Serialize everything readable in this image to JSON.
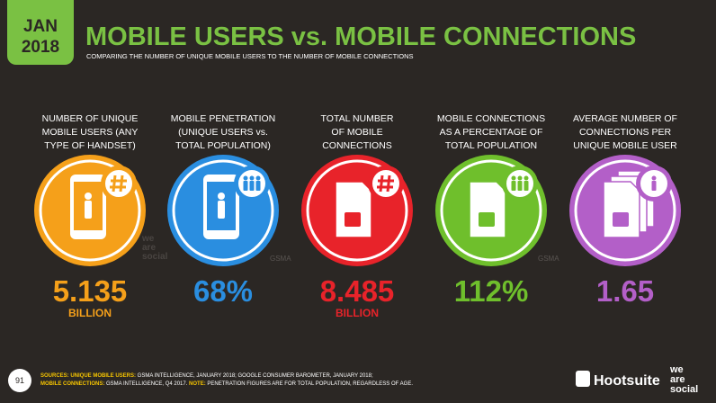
{
  "header": {
    "badge": [
      "JAN",
      "2018"
    ],
    "title": "MOBILE USERS vs. MOBILE CONNECTIONS",
    "subtitle": "COMPARING THE NUMBER OF UNIQUE MOBILE USERS TO THE NUMBER OF MOBILE CONNECTIONS"
  },
  "stats": [
    {
      "label_lines": [
        "NUMBER OF UNIQUE",
        "MOBILE USERS (ANY",
        "TYPE OF HANDSET)"
      ],
      "value": "5.135",
      "unit": "BILLION",
      "color": "#f5a01a"
    },
    {
      "label_lines": [
        "MOBILE PENETRATION",
        "(UNIQUE USERS vs.",
        "TOTAL POPULATION)"
      ],
      "value": "68%",
      "color": "#2a8ee0"
    },
    {
      "label_lines": [
        "TOTAL NUMBER",
        "OF MOBILE",
        "CONNECTIONS"
      ],
      "value": "8.485",
      "unit": "BILLION",
      "color": "#e8232a"
    },
    {
      "label_lines": [
        "MOBILE CONNECTIONS",
        "AS A PERCENTAGE OF",
        "TOTAL POPULATION"
      ],
      "value": "112%",
      "color": "#6fbf2c"
    },
    {
      "label_lines": [
        "AVERAGE NUMBER OF",
        "CONNECTIONS PER",
        "UNIQUE MOBILE USER"
      ],
      "value": "1.65",
      "color": "#b35fc8"
    }
  ],
  "watermarks": [
    "we",
    "are",
    "social",
    "GSMA"
  ],
  "footer": {
    "page": "91",
    "sources": [
      [
        {
          "text": "SOURCES: UNIQUE MOBILE USERS:",
          "accent": true
        },
        {
          "text": " GSMA INTELLIGENCE, JANUARY 2018; GOOGLE CONSUMER BAROMETER, JANUARY 2018;"
        }
      ],
      [
        {
          "text": "MOBILE CONNECTIONS:",
          "accent": true
        },
        {
          "text": " GSMA INTELLIGENCE, Q4 2017. "
        },
        {
          "text": "NOTE:",
          "accent": true
        },
        {
          "text": " PENETRATION FIGURES ARE FOR TOTAL POPULATION, REGARDLESS OF AGE."
        }
      ]
    ],
    "logos": [
      "Hootsuite",
      "we",
      "are",
      "social"
    ]
  }
}
